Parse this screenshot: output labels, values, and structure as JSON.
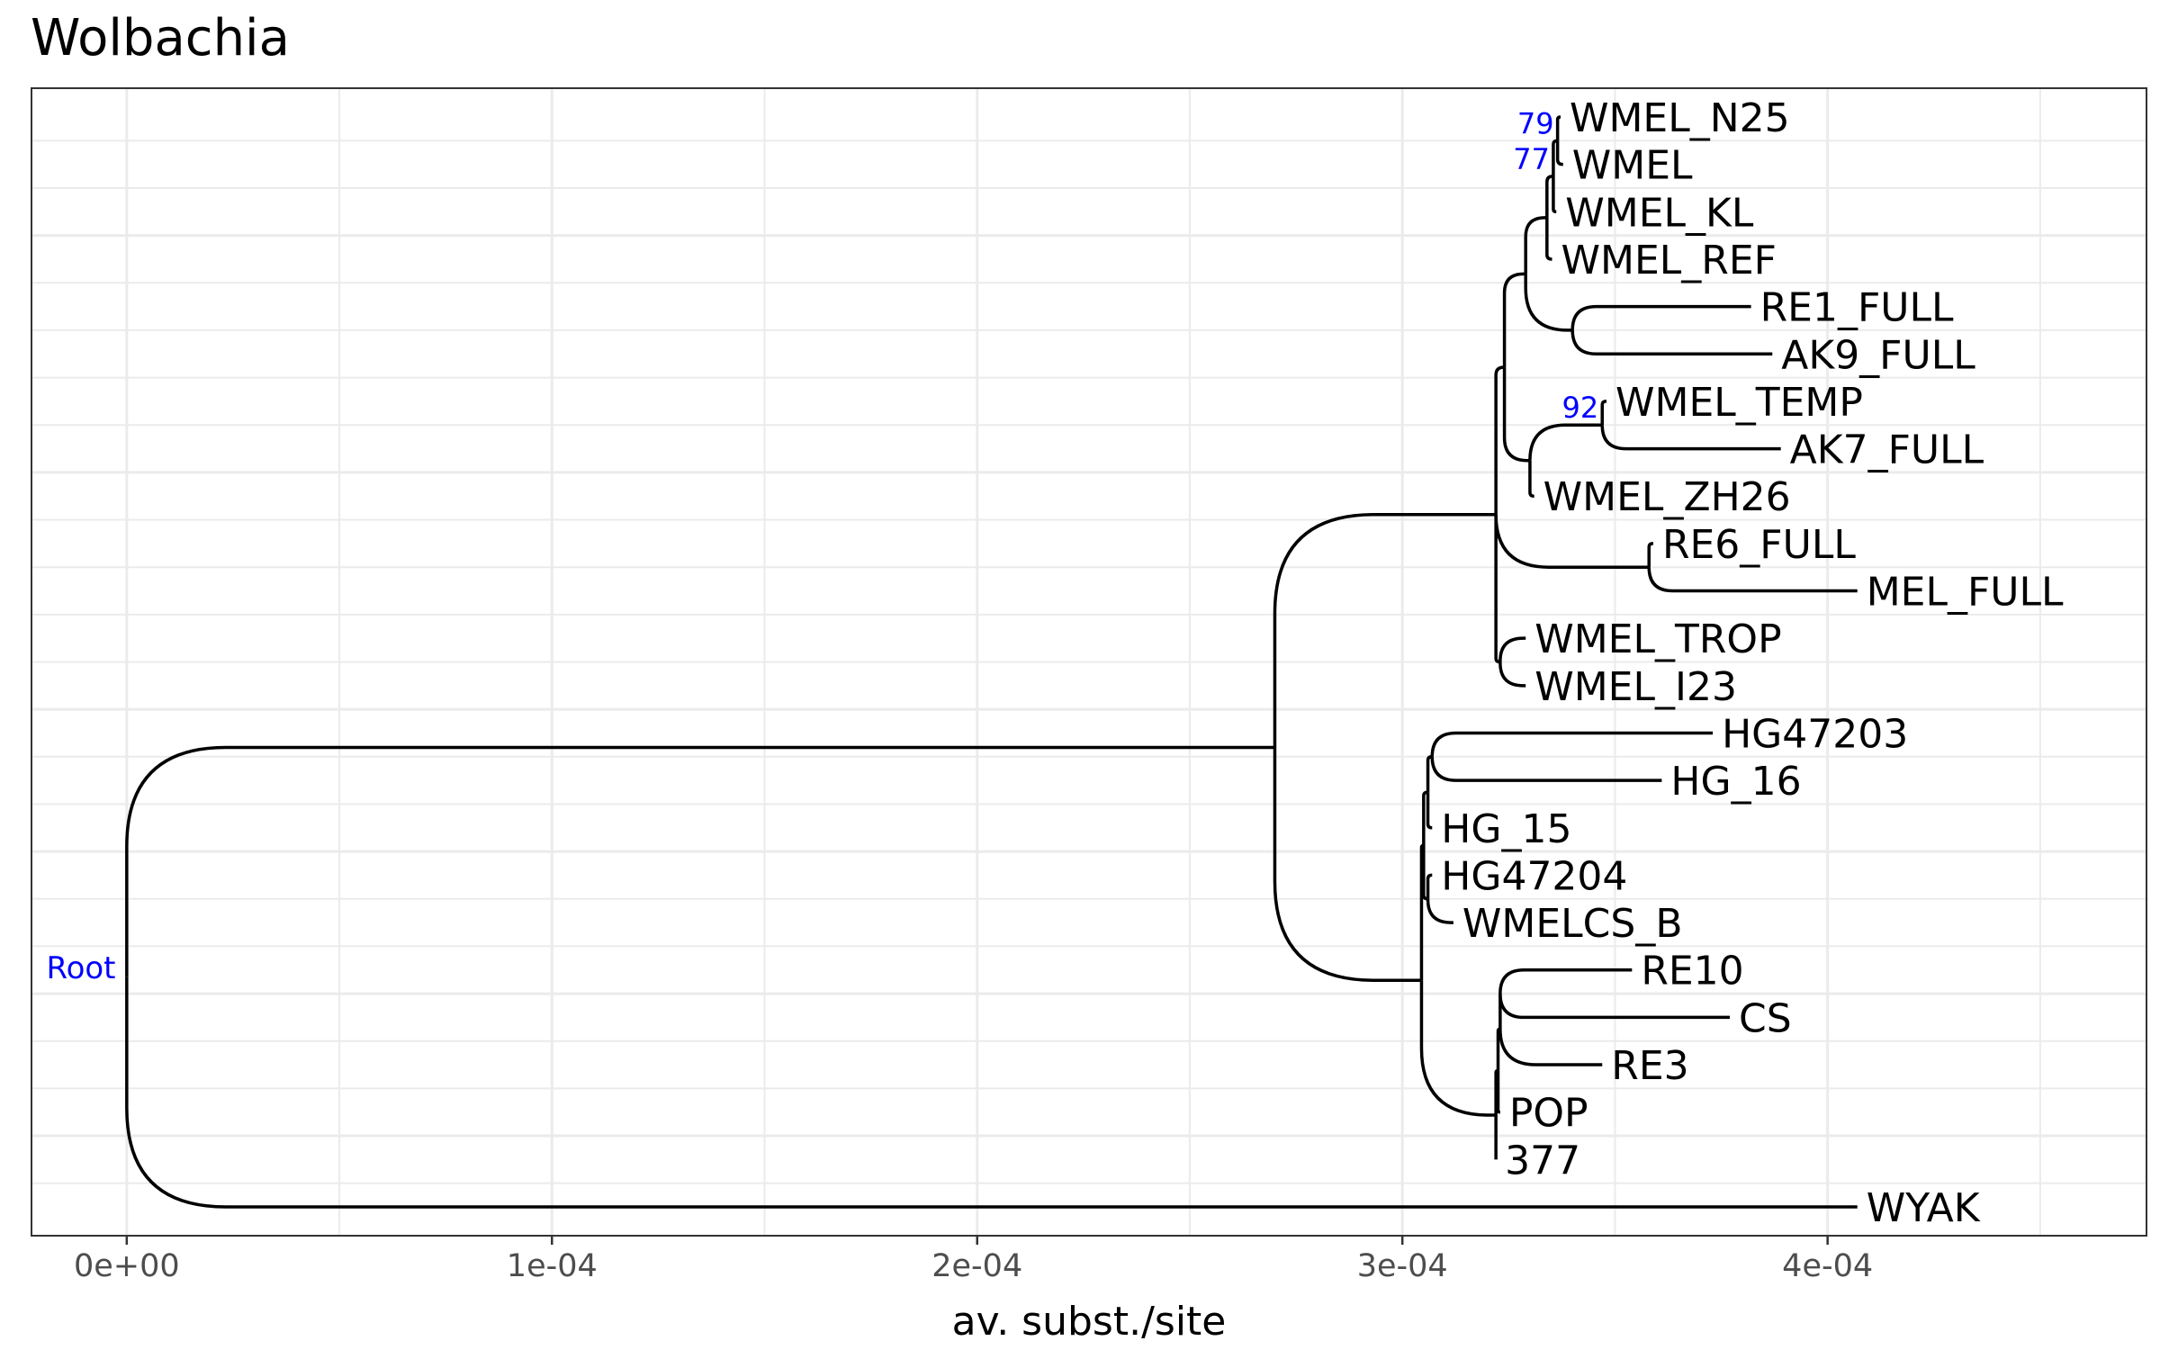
{
  "title": "Wolbachia",
  "xaxis": {
    "label": "av. subst./site",
    "range": [
      -2.24e-05,
      0.000475
    ],
    "ticks": [
      {
        "value": 0.0,
        "label": "0e+00"
      },
      {
        "value": 0.0001,
        "label": "1e-04"
      },
      {
        "value": 0.0002,
        "label": "2e-04"
      },
      {
        "value": 0.0003,
        "label": "3e-04"
      },
      {
        "value": 0.0004,
        "label": "4e-04"
      }
    ],
    "minor": [
      5e-05,
      0.00015,
      0.00025,
      0.00035,
      0.00045
    ],
    "grid": true
  },
  "colors": {
    "branch": "#000000",
    "support": "#0000ff",
    "grid": "#ebebeb",
    "panel_border": "#333333",
    "tick_text": "#4d4d4d"
  },
  "root_label": "Root",
  "chart_data": {
    "type": "phylogenetic-tree",
    "title": "Wolbachia",
    "xlabel": "av. subst./site",
    "leaf_order": [
      "WMEL_N25",
      "WMEL",
      "WMEL_KL",
      "WMEL_REF",
      "RE1_FULL",
      "AK9_FULL",
      "WMEL_TEMP",
      "AK7_FULL",
      "WMEL_ZH26",
      "RE6_FULL",
      "MEL_FULL",
      "WMEL_TROP",
      "WMEL_I23",
      "HG47203",
      "HG_16",
      "HG_15",
      "HG47204",
      "WMELCS_B",
      "RE10",
      "CS",
      "RE3",
      "POP",
      "377",
      "WYAK"
    ],
    "tree": {
      "name": "Root",
      "x": 0.0,
      "children": [
        {
          "x": 0.00027,
          "children": [
            {
              "x": 0.000322,
              "children": [
                {
                  "x": 0.000324,
                  "children": [
                    {
                      "x": 0.000329,
                      "children": [
                        {
                          "x": 0.000334,
                          "children": [
                            {
                              "x": 0.0003355,
                              "label": "77",
                              "children": [
                                {
                                  "x": 0.0003365,
                                  "label": "79",
                                  "children": [
                                    {
                                      "x": 0.0003372,
                                      "name": "WMEL_N25"
                                    },
                                    {
                                      "x": 0.0003378,
                                      "name": "WMEL"
                                    }
                                  ]
                                },
                                {
                                  "x": 0.0003362,
                                  "name": "WMEL_KL"
                                }
                              ]
                            },
                            {
                              "x": 0.0003352,
                              "name": "WMEL_REF"
                            }
                          ]
                        },
                        {
                          "x": 0.00034,
                          "children": [
                            {
                              "x": 0.000382,
                              "name": "RE1_FULL"
                            },
                            {
                              "x": 0.000387,
                              "name": "AK9_FULL"
                            }
                          ]
                        }
                      ]
                    },
                    {
                      "x": 0.00033,
                      "children": [
                        {
                          "x": 0.000347,
                          "label": "92",
                          "children": [
                            {
                              "x": 0.000348,
                              "name": "WMEL_TEMP"
                            },
                            {
                              "x": 0.000389,
                              "name": "AK7_FULL"
                            }
                          ]
                        },
                        {
                          "x": 0.000331,
                          "name": "WMEL_ZH26"
                        }
                      ]
                    }
                  ]
                },
                {
                  "x": 0.000358,
                  "children": [
                    {
                      "x": 0.000359,
                      "name": "RE6_FULL"
                    },
                    {
                      "x": 0.000407,
                      "name": "MEL_FULL"
                    }
                  ]
                },
                {
                  "x": 0.000323,
                  "children": [
                    {
                      "x": 0.000329,
                      "name": "WMEL_TROP"
                    },
                    {
                      "x": 0.000329,
                      "name": "WMEL_I23"
                    }
                  ]
                }
              ]
            },
            {
              "x": 0.0003045,
              "children": [
                {
                  "x": 0.000305,
                  "children": [
                    {
                      "x": 0.000306,
                      "children": [
                        {
                          "x": 0.000307,
                          "children": [
                            {
                              "x": 0.000373,
                              "name": "HG47203"
                            },
                            {
                              "x": 0.000361,
                              "name": "HG_16"
                            }
                          ]
                        },
                        {
                          "x": 0.000307,
                          "name": "HG_15"
                        }
                      ]
                    },
                    {
                      "x": 0.000306,
                      "children": [
                        {
                          "x": 0.000307,
                          "name": "HG47204"
                        },
                        {
                          "x": 0.000312,
                          "name": "WMELCS_B"
                        }
                      ]
                    }
                  ]
                },
                {
                  "x": 0.000322,
                  "children": [
                    {
                      "x": 0.0003225,
                      "children": [
                        {
                          "x": 0.000323,
                          "children": [
                            {
                              "x": 0.000323,
                              "children": [
                                {
                                  "x": 0.000354,
                                  "name": "RE10"
                                },
                                {
                                  "x": 0.000377,
                                  "name": "CS"
                                }
                              ]
                            },
                            {
                              "x": 0.000347,
                              "name": "RE3"
                            }
                          ]
                        },
                        {
                          "x": 0.000323,
                          "name": "POP"
                        }
                      ]
                    },
                    {
                      "x": 0.000322,
                      "name": "377"
                    }
                  ]
                }
              ]
            }
          ]
        },
        {
          "x": 0.000407,
          "name": "WYAK"
        }
      ]
    }
  }
}
